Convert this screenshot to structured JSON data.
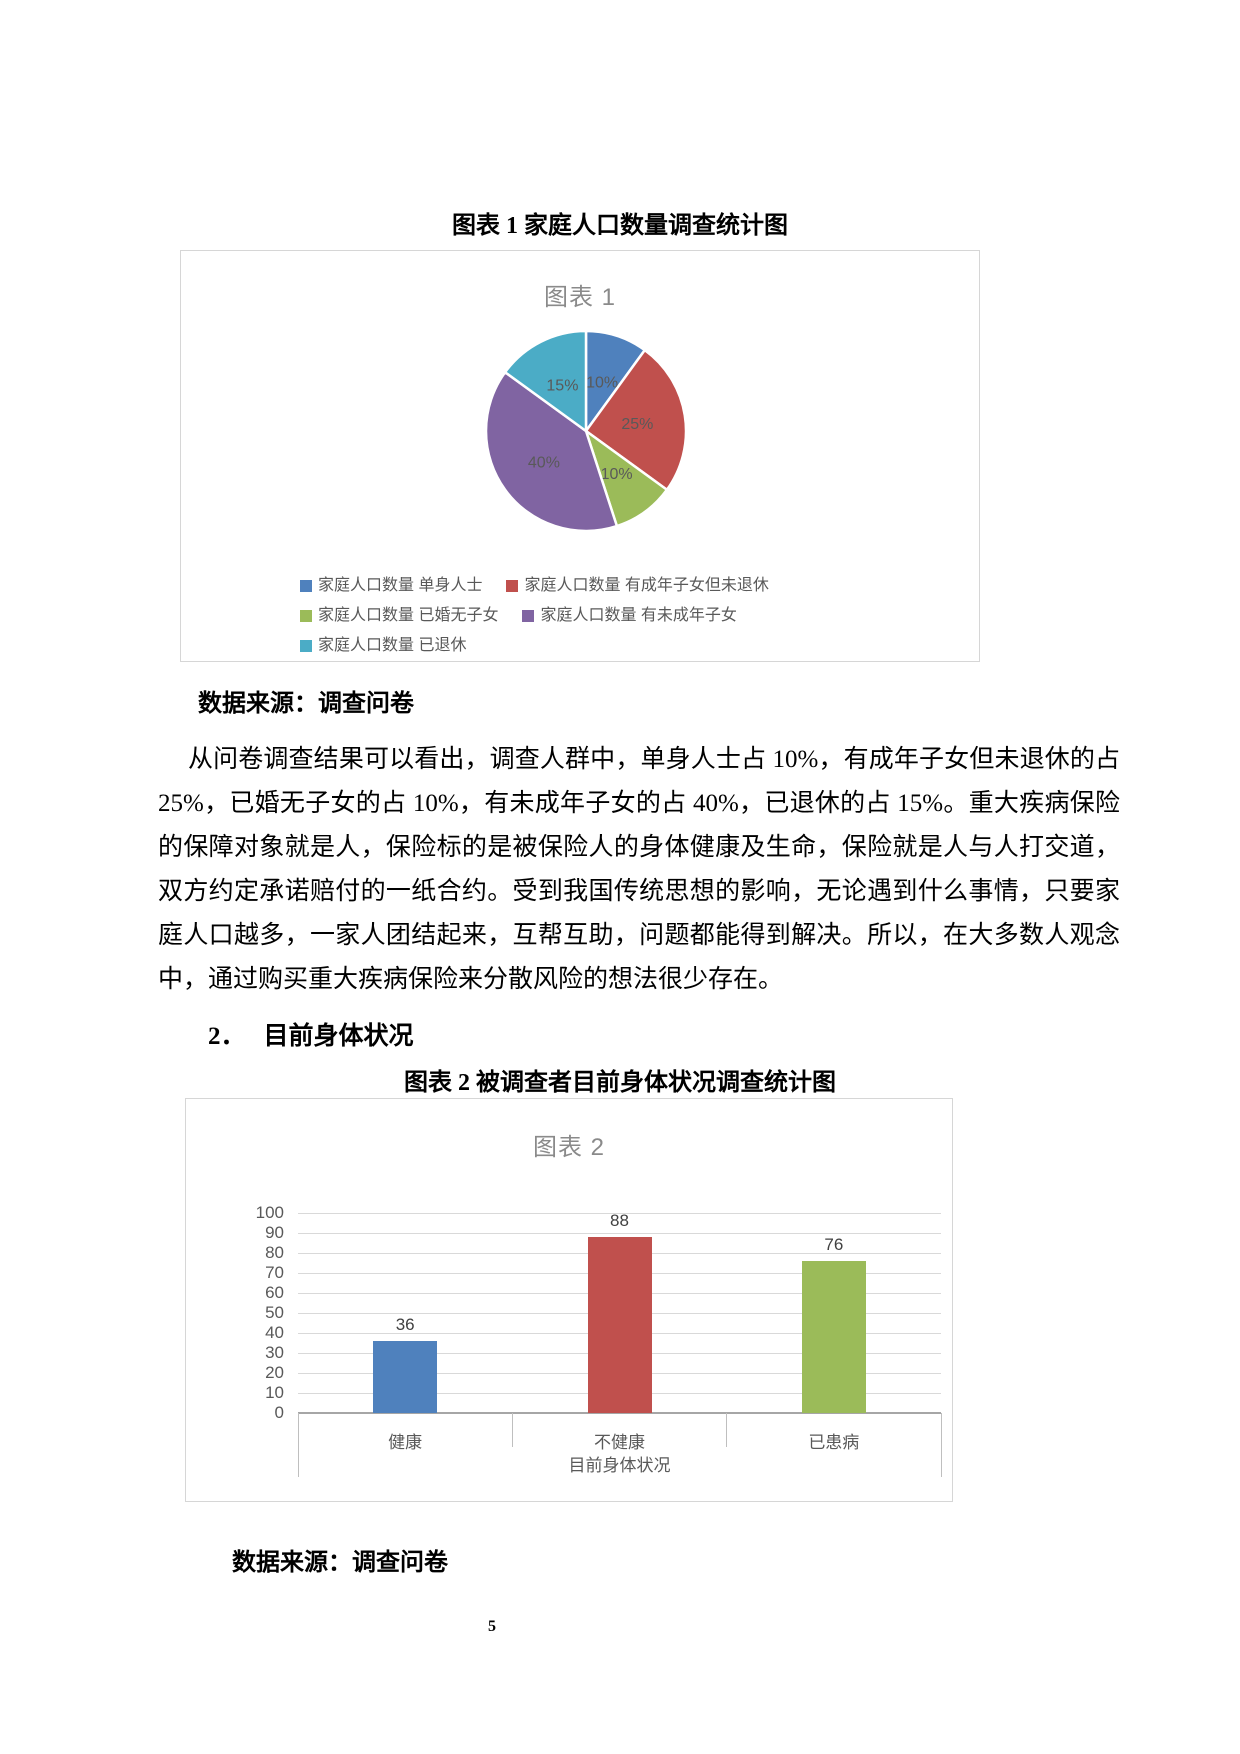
{
  "page": {
    "number": "5"
  },
  "figure1": {
    "caption": "图表 1 家庭人口数量调查统计图",
    "chart_title": "图表 1",
    "source_label": "数据来源：调查问卷"
  },
  "paragraph": "从问卷调查结果可以看出，调查人群中，单身人士占 10%，有成年子女但未退休的占 25%，已婚无子女的占 10%，有未成年子女的占 40%，已退休的占 15%。重大疾病保险的保障对象就是人，保险标的是被保险人的身体健康及生命，保险就是人与人打交道，双方约定承诺赔付的一纸合约。受到我国传统思想的影响，无论遇到什么事情，只要家庭人口越多，一家人团结起来，互帮互助，问题都能得到解决。所以，在大多数人观念中，通过购买重大疾病保险来分散风险的想法很少存在。",
  "section2": {
    "number": "2．",
    "title": "目前身体状况"
  },
  "figure2": {
    "caption": "图表 2 被调查者目前身体状况调查统计图",
    "chart_title": "图表 2",
    "source_label": "数据来源：调查问卷"
  },
  "chart_data": [
    {
      "type": "pie",
      "title": "图表 1",
      "labels": [
        "家庭人口数量 单身人士",
        "家庭人口数量 有成年子女但未退休",
        "家庭人口数量 已婚无子女",
        "家庭人口数量 有未成年子女",
        "家庭人口数量 已退休"
      ],
      "values": [
        10,
        25,
        10,
        40,
        15
      ],
      "value_labels": [
        "10%",
        "25%",
        "10%",
        "40%",
        "15%"
      ],
      "colors": [
        "#4F81BD",
        "#C0504D",
        "#9BBB59",
        "#8064A2",
        "#4BACC6"
      ],
      "legend_position": "bottom",
      "start_angle_deg": 0,
      "direction": "clockwise"
    },
    {
      "type": "bar",
      "title": "图表 2",
      "categories": [
        "健康",
        "不健康",
        "已患病"
      ],
      "values": [
        36,
        88,
        76
      ],
      "colors": [
        "#4F81BD",
        "#C0504D",
        "#9BBB59"
      ],
      "xlabel": "目前身体状况",
      "ylim": [
        0,
        100
      ],
      "ytick_step": 10,
      "grid": true,
      "legend_position": "none"
    }
  ]
}
